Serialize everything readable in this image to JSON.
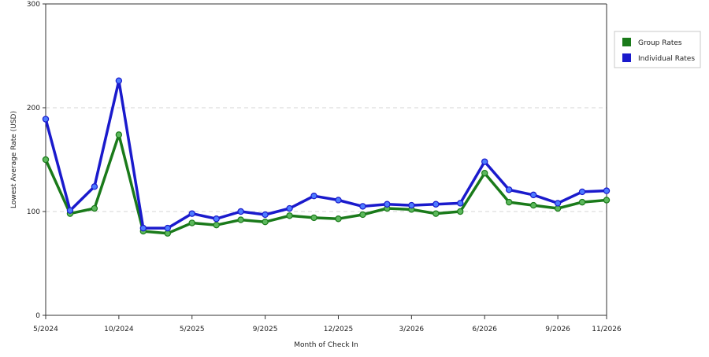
{
  "chart_data": {
    "type": "line",
    "xlabel": "Month of Check In",
    "ylabel": "Lowest Average Rate (USD)",
    "ylim": [
      0,
      300
    ],
    "y_ticks": [
      0,
      100,
      200,
      300
    ],
    "grid": "horizontal dashed",
    "legend_position": "right",
    "x": [
      "5/2024",
      "6/2024",
      "7/2024",
      "10/2024",
      "11/2024",
      "12/2024",
      "5/2025",
      "6/2025",
      "8/2025",
      "9/2025",
      "10/2025",
      "11/2025",
      "12/2025",
      "1/2026",
      "2/2026",
      "3/2026",
      "4/2026",
      "5/2026",
      "6/2026",
      "7/2026",
      "8/2026",
      "9/2026",
      "10/2026",
      "11/2026"
    ],
    "x_tick_labels": [
      {
        "index": 0,
        "label": "5/2024"
      },
      {
        "index": 3,
        "label": "10/2024"
      },
      {
        "index": 6,
        "label": "5/2025"
      },
      {
        "index": 9,
        "label": "9/2025"
      },
      {
        "index": 12,
        "label": "12/2025"
      },
      {
        "index": 15,
        "label": "3/2026"
      },
      {
        "index": 18,
        "label": "6/2026"
      },
      {
        "index": 21,
        "label": "9/2026"
      },
      {
        "index": 23,
        "label": "11/2026"
      }
    ],
    "series": [
      {
        "name": "Group Rates",
        "color": "#1a7a1a",
        "marker_color": "#5cb85c",
        "values": [
          150,
          98,
          103,
          174,
          81,
          79,
          89,
          87,
          92,
          90,
          96,
          94,
          93,
          97,
          103,
          102,
          98,
          100,
          137,
          109,
          106,
          103,
          109,
          111
        ]
      },
      {
        "name": "Individual Rates",
        "color": "#1a1acc",
        "marker_color": "#4d7bff",
        "values": [
          189,
          101,
          124,
          226,
          84,
          84,
          98,
          93,
          100,
          97,
          103,
          115,
          111,
          105,
          107,
          106,
          107,
          108,
          148,
          121,
          116,
          108,
          119,
          120
        ]
      }
    ]
  }
}
